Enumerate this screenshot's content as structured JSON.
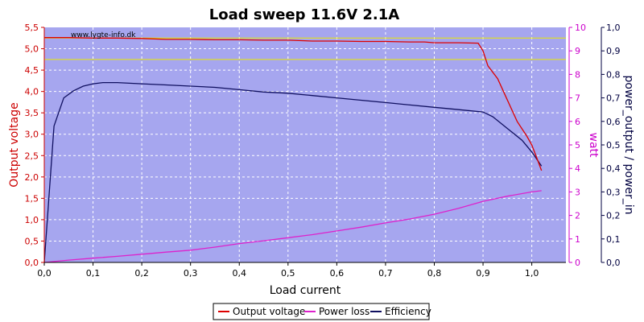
{
  "chart_data": {
    "type": "line",
    "title": "Load sweep 11.6V 2.1A",
    "watermark": "www.lygte-info.dk",
    "xlabel": "Load current",
    "ylabel_left": "Output voltage",
    "ylabel_right1": "watt",
    "ylabel_right2": "power_output / power_in",
    "xlim": [
      0.0,
      1.07
    ],
    "ylim_left": [
      0.0,
      5.5
    ],
    "ylim_right1": [
      0,
      10
    ],
    "ylim_right2": [
      0.0,
      1.0
    ],
    "x_ticks": [
      "0,0",
      "0,1",
      "0,2",
      "0,3",
      "0,4",
      "0,5",
      "0,6",
      "0,7",
      "0,8",
      "0,9",
      "1,0"
    ],
    "y_left_ticks": [
      "0,0",
      "0,5",
      "1,0",
      "1,5",
      "2,0",
      "2,5",
      "3,0",
      "3,5",
      "4,0",
      "4,5",
      "5,0",
      "5,5"
    ],
    "y_right1_ticks": [
      "0",
      "1",
      "2",
      "3",
      "4",
      "5",
      "6",
      "7",
      "8",
      "9",
      "10"
    ],
    "y_right2_ticks": [
      "0,0",
      "0,1",
      "0,2",
      "0,3",
      "0,4",
      "0,5",
      "0,6",
      "0,7",
      "0,8",
      "0,9",
      "1,0"
    ],
    "grid": true,
    "legend_position": "bottom-center",
    "colors": {
      "plot_bg": "#a6a6ef",
      "output_voltage": "#dd0000",
      "power_loss": "#dd22cc",
      "efficiency": "#101060",
      "reference_lines": "#e8e800",
      "left_axis": "#cc0000",
      "right1_axis": "#cc00cc",
      "right2_axis": "#000040"
    },
    "reference_lines_left": [
      5.25,
      4.75
    ],
    "series": [
      {
        "name": "Output voltage",
        "axis": "left",
        "x": [
          0.0,
          0.05,
          0.1,
          0.15,
          0.2,
          0.25,
          0.3,
          0.35,
          0.4,
          0.45,
          0.5,
          0.55,
          0.6,
          0.65,
          0.7,
          0.75,
          0.78,
          0.8,
          0.85,
          0.89,
          0.9,
          0.91,
          0.93,
          0.95,
          0.97,
          0.99,
          1.0,
          1.01,
          1.02
        ],
        "values": [
          5.26,
          5.26,
          5.25,
          5.25,
          5.24,
          5.22,
          5.22,
          5.21,
          5.21,
          5.2,
          5.2,
          5.18,
          5.18,
          5.17,
          5.17,
          5.16,
          5.16,
          5.14,
          5.14,
          5.13,
          4.95,
          4.6,
          4.3,
          3.8,
          3.3,
          2.95,
          2.75,
          2.45,
          2.15
        ]
      },
      {
        "name": "Power loss",
        "axis": "right1",
        "x": [
          0.0,
          0.05,
          0.1,
          0.15,
          0.2,
          0.25,
          0.3,
          0.35,
          0.4,
          0.45,
          0.5,
          0.55,
          0.6,
          0.65,
          0.7,
          0.75,
          0.8,
          0.85,
          0.9,
          0.95,
          1.0,
          1.02
        ],
        "values": [
          0.0,
          0.1,
          0.18,
          0.26,
          0.35,
          0.44,
          0.52,
          0.65,
          0.8,
          0.92,
          1.05,
          1.18,
          1.34,
          1.5,
          1.68,
          1.85,
          2.05,
          2.3,
          2.6,
          2.82,
          3.0,
          3.05
        ]
      },
      {
        "name": "Efficiency",
        "axis": "right2",
        "x": [
          0.0,
          0.02,
          0.04,
          0.06,
          0.08,
          0.1,
          0.12,
          0.15,
          0.2,
          0.25,
          0.3,
          0.35,
          0.4,
          0.45,
          0.5,
          0.55,
          0.6,
          0.65,
          0.7,
          0.75,
          0.8,
          0.85,
          0.9,
          0.92,
          0.95,
          0.98,
          1.0,
          1.02
        ],
        "values": [
          0.0,
          0.58,
          0.7,
          0.73,
          0.75,
          0.76,
          0.765,
          0.765,
          0.76,
          0.755,
          0.75,
          0.745,
          0.735,
          0.725,
          0.72,
          0.71,
          0.7,
          0.69,
          0.68,
          0.67,
          0.66,
          0.65,
          0.64,
          0.62,
          0.57,
          0.52,
          0.47,
          0.41
        ]
      }
    ]
  }
}
